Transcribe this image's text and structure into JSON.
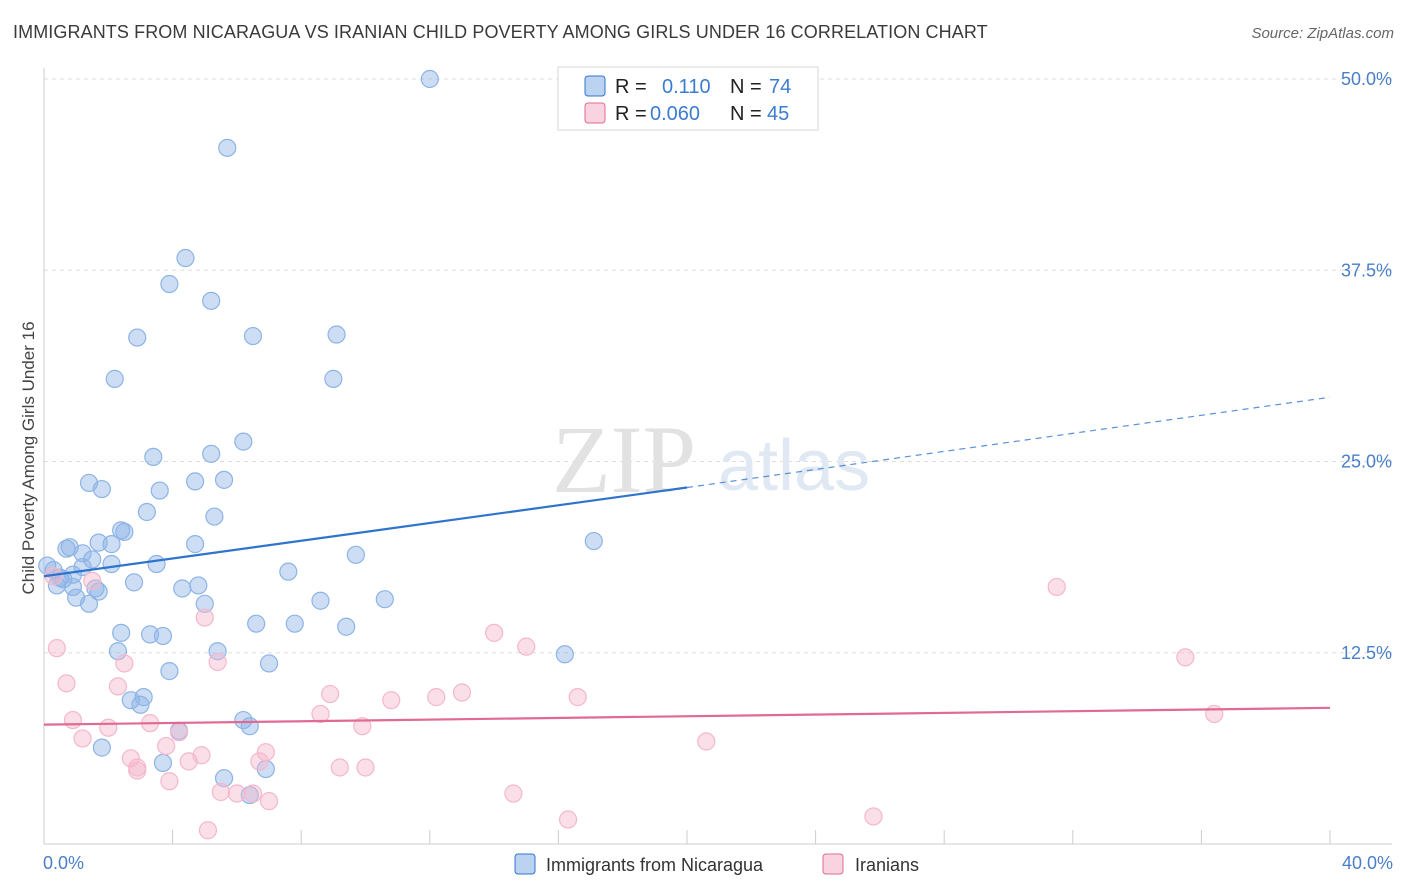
{
  "header": {
    "title": "IMMIGRANTS FROM NICARAGUA VS IRANIAN CHILD POVERTY AMONG GIRLS UNDER 16 CORRELATION CHART",
    "source": "Source: ZipAtlas.com"
  },
  "watermark": {
    "zip": "ZIP",
    "atlas": "atlas"
  },
  "chart_data": {
    "type": "scatter",
    "title": "IMMIGRANTS FROM NICARAGUA VS IRANIAN CHILD POVERTY AMONG GIRLS UNDER 16 CORRELATION CHART",
    "xlabel": "",
    "ylabel": "Child Poverty Among Girls Under 16",
    "xlim": [
      0,
      40
    ],
    "ylim": [
      0,
      50
    ],
    "x_ticks": [
      0,
      40
    ],
    "x_tick_labels": [
      "0.0%",
      "40.0%"
    ],
    "y_ticks": [
      12.5,
      25,
      37.5,
      50
    ],
    "y_tick_labels": [
      "12.5%",
      "25.0%",
      "37.5%",
      "50.0%"
    ],
    "grid": true,
    "legend_placement": "top-center",
    "series": [
      {
        "name": "Immigrants from Nicaragua",
        "color": "#8db4e6",
        "line_color": "#2f74cc",
        "R": "0.110",
        "N": "74",
        "trend": {
          "x0": 0,
          "y0": 17.5,
          "x1": 20,
          "y1": 23.3,
          "x_dash_end": 40,
          "y_dash_end": 29.2
        },
        "points": [
          [
            12,
            50
          ],
          [
            5.7,
            45.5
          ],
          [
            4.4,
            38.3
          ],
          [
            3.9,
            36.6
          ],
          [
            5.2,
            35.5
          ],
          [
            2.9,
            33.1
          ],
          [
            6.5,
            33.2
          ],
          [
            9.1,
            33.3
          ],
          [
            2.2,
            30.4
          ],
          [
            9.0,
            30.4
          ],
          [
            6.2,
            26.3
          ],
          [
            3.4,
            25.3
          ],
          [
            5.2,
            25.5
          ],
          [
            1.4,
            23.6
          ],
          [
            1.8,
            23.2
          ],
          [
            3.6,
            23.1
          ],
          [
            4.7,
            23.7
          ],
          [
            5.6,
            23.8
          ],
          [
            3.2,
            21.7
          ],
          [
            5.3,
            21.4
          ],
          [
            2.4,
            20.5
          ],
          [
            2.5,
            20.4
          ],
          [
            0.7,
            19.3
          ],
          [
            0.8,
            19.4
          ],
          [
            1.2,
            19.0
          ],
          [
            1.7,
            19.7
          ],
          [
            2.1,
            19.6
          ],
          [
            4.7,
            19.6
          ],
          [
            17.1,
            19.8
          ],
          [
            9.7,
            18.9
          ],
          [
            0.1,
            18.2
          ],
          [
            0.3,
            17.9
          ],
          [
            0.5,
            17.4
          ],
          [
            0.6,
            17.3
          ],
          [
            0.9,
            17.6
          ],
          [
            1.2,
            18.1
          ],
          [
            2.1,
            18.3
          ],
          [
            3.5,
            18.3
          ],
          [
            7.6,
            17.8
          ],
          [
            2.8,
            17.1
          ],
          [
            0.4,
            16.9
          ],
          [
            1.6,
            16.7
          ],
          [
            1.0,
            16.1
          ],
          [
            1.7,
            16.5
          ],
          [
            4.3,
            16.7
          ],
          [
            4.8,
            16.9
          ],
          [
            1.4,
            15.7
          ],
          [
            5.0,
            15.7
          ],
          [
            8.6,
            15.9
          ],
          [
            10.6,
            16.0
          ],
          [
            6.6,
            14.4
          ],
          [
            7.8,
            14.4
          ],
          [
            9.4,
            14.2
          ],
          [
            2.4,
            13.8
          ],
          [
            3.3,
            13.7
          ],
          [
            3.7,
            13.6
          ],
          [
            2.3,
            12.6
          ],
          [
            5.4,
            12.6
          ],
          [
            16.2,
            12.4
          ],
          [
            7.0,
            11.8
          ],
          [
            3.9,
            11.3
          ],
          [
            3.1,
            9.6
          ],
          [
            2.7,
            9.4
          ],
          [
            3.0,
            9.1
          ],
          [
            6.2,
            8.1
          ],
          [
            6.4,
            7.7
          ],
          [
            4.2,
            7.4
          ],
          [
            1.8,
            6.3
          ],
          [
            3.7,
            5.3
          ],
          [
            6.9,
            4.9
          ],
          [
            5.6,
            4.3
          ],
          [
            6.4,
            3.2
          ],
          [
            0.9,
            16.8
          ],
          [
            1.5,
            18.6
          ]
        ]
      },
      {
        "name": "Iranians",
        "color": "#f5b7cb",
        "line_color": "#e06a95",
        "R": "0.060",
        "N": "45",
        "trend": {
          "x0": 0,
          "y0": 7.8,
          "x1": 40,
          "y1": 8.9
        },
        "points": [
          [
            0.3,
            17.5
          ],
          [
            1.5,
            17.2
          ],
          [
            0.4,
            12.8
          ],
          [
            0.7,
            10.5
          ],
          [
            5.0,
            14.8
          ],
          [
            14.0,
            13.8
          ],
          [
            15.0,
            12.9
          ],
          [
            31.5,
            16.8
          ],
          [
            35.5,
            12.2
          ],
          [
            2.5,
            11.8
          ],
          [
            5.4,
            11.9
          ],
          [
            2.3,
            10.3
          ],
          [
            8.9,
            9.8
          ],
          [
            10.8,
            9.4
          ],
          [
            12.2,
            9.6
          ],
          [
            13.0,
            9.9
          ],
          [
            16.6,
            9.6
          ],
          [
            36.4,
            8.5
          ],
          [
            8.6,
            8.5
          ],
          [
            0.9,
            8.1
          ],
          [
            2.0,
            7.6
          ],
          [
            3.3,
            7.9
          ],
          [
            9.9,
            7.7
          ],
          [
            4.2,
            7.3
          ],
          [
            1.2,
            6.9
          ],
          [
            2.7,
            5.6
          ],
          [
            3.8,
            6.4
          ],
          [
            4.9,
            5.8
          ],
          [
            6.9,
            6.0
          ],
          [
            20.6,
            6.7
          ],
          [
            2.9,
            5.0
          ],
          [
            4.5,
            5.4
          ],
          [
            6.7,
            5.4
          ],
          [
            9.2,
            5.0
          ],
          [
            10.0,
            5.0
          ],
          [
            3.9,
            4.1
          ],
          [
            5.5,
            3.4
          ],
          [
            6.0,
            3.3
          ],
          [
            6.5,
            3.3
          ],
          [
            7.0,
            2.8
          ],
          [
            14.6,
            3.3
          ],
          [
            16.3,
            1.6
          ],
          [
            25.8,
            1.8
          ],
          [
            5.1,
            0.9
          ],
          [
            2.9,
            4.8
          ]
        ]
      }
    ]
  },
  "bottom_legend": {
    "items": [
      "Immigrants from Nicaragua",
      "Iranians"
    ]
  }
}
